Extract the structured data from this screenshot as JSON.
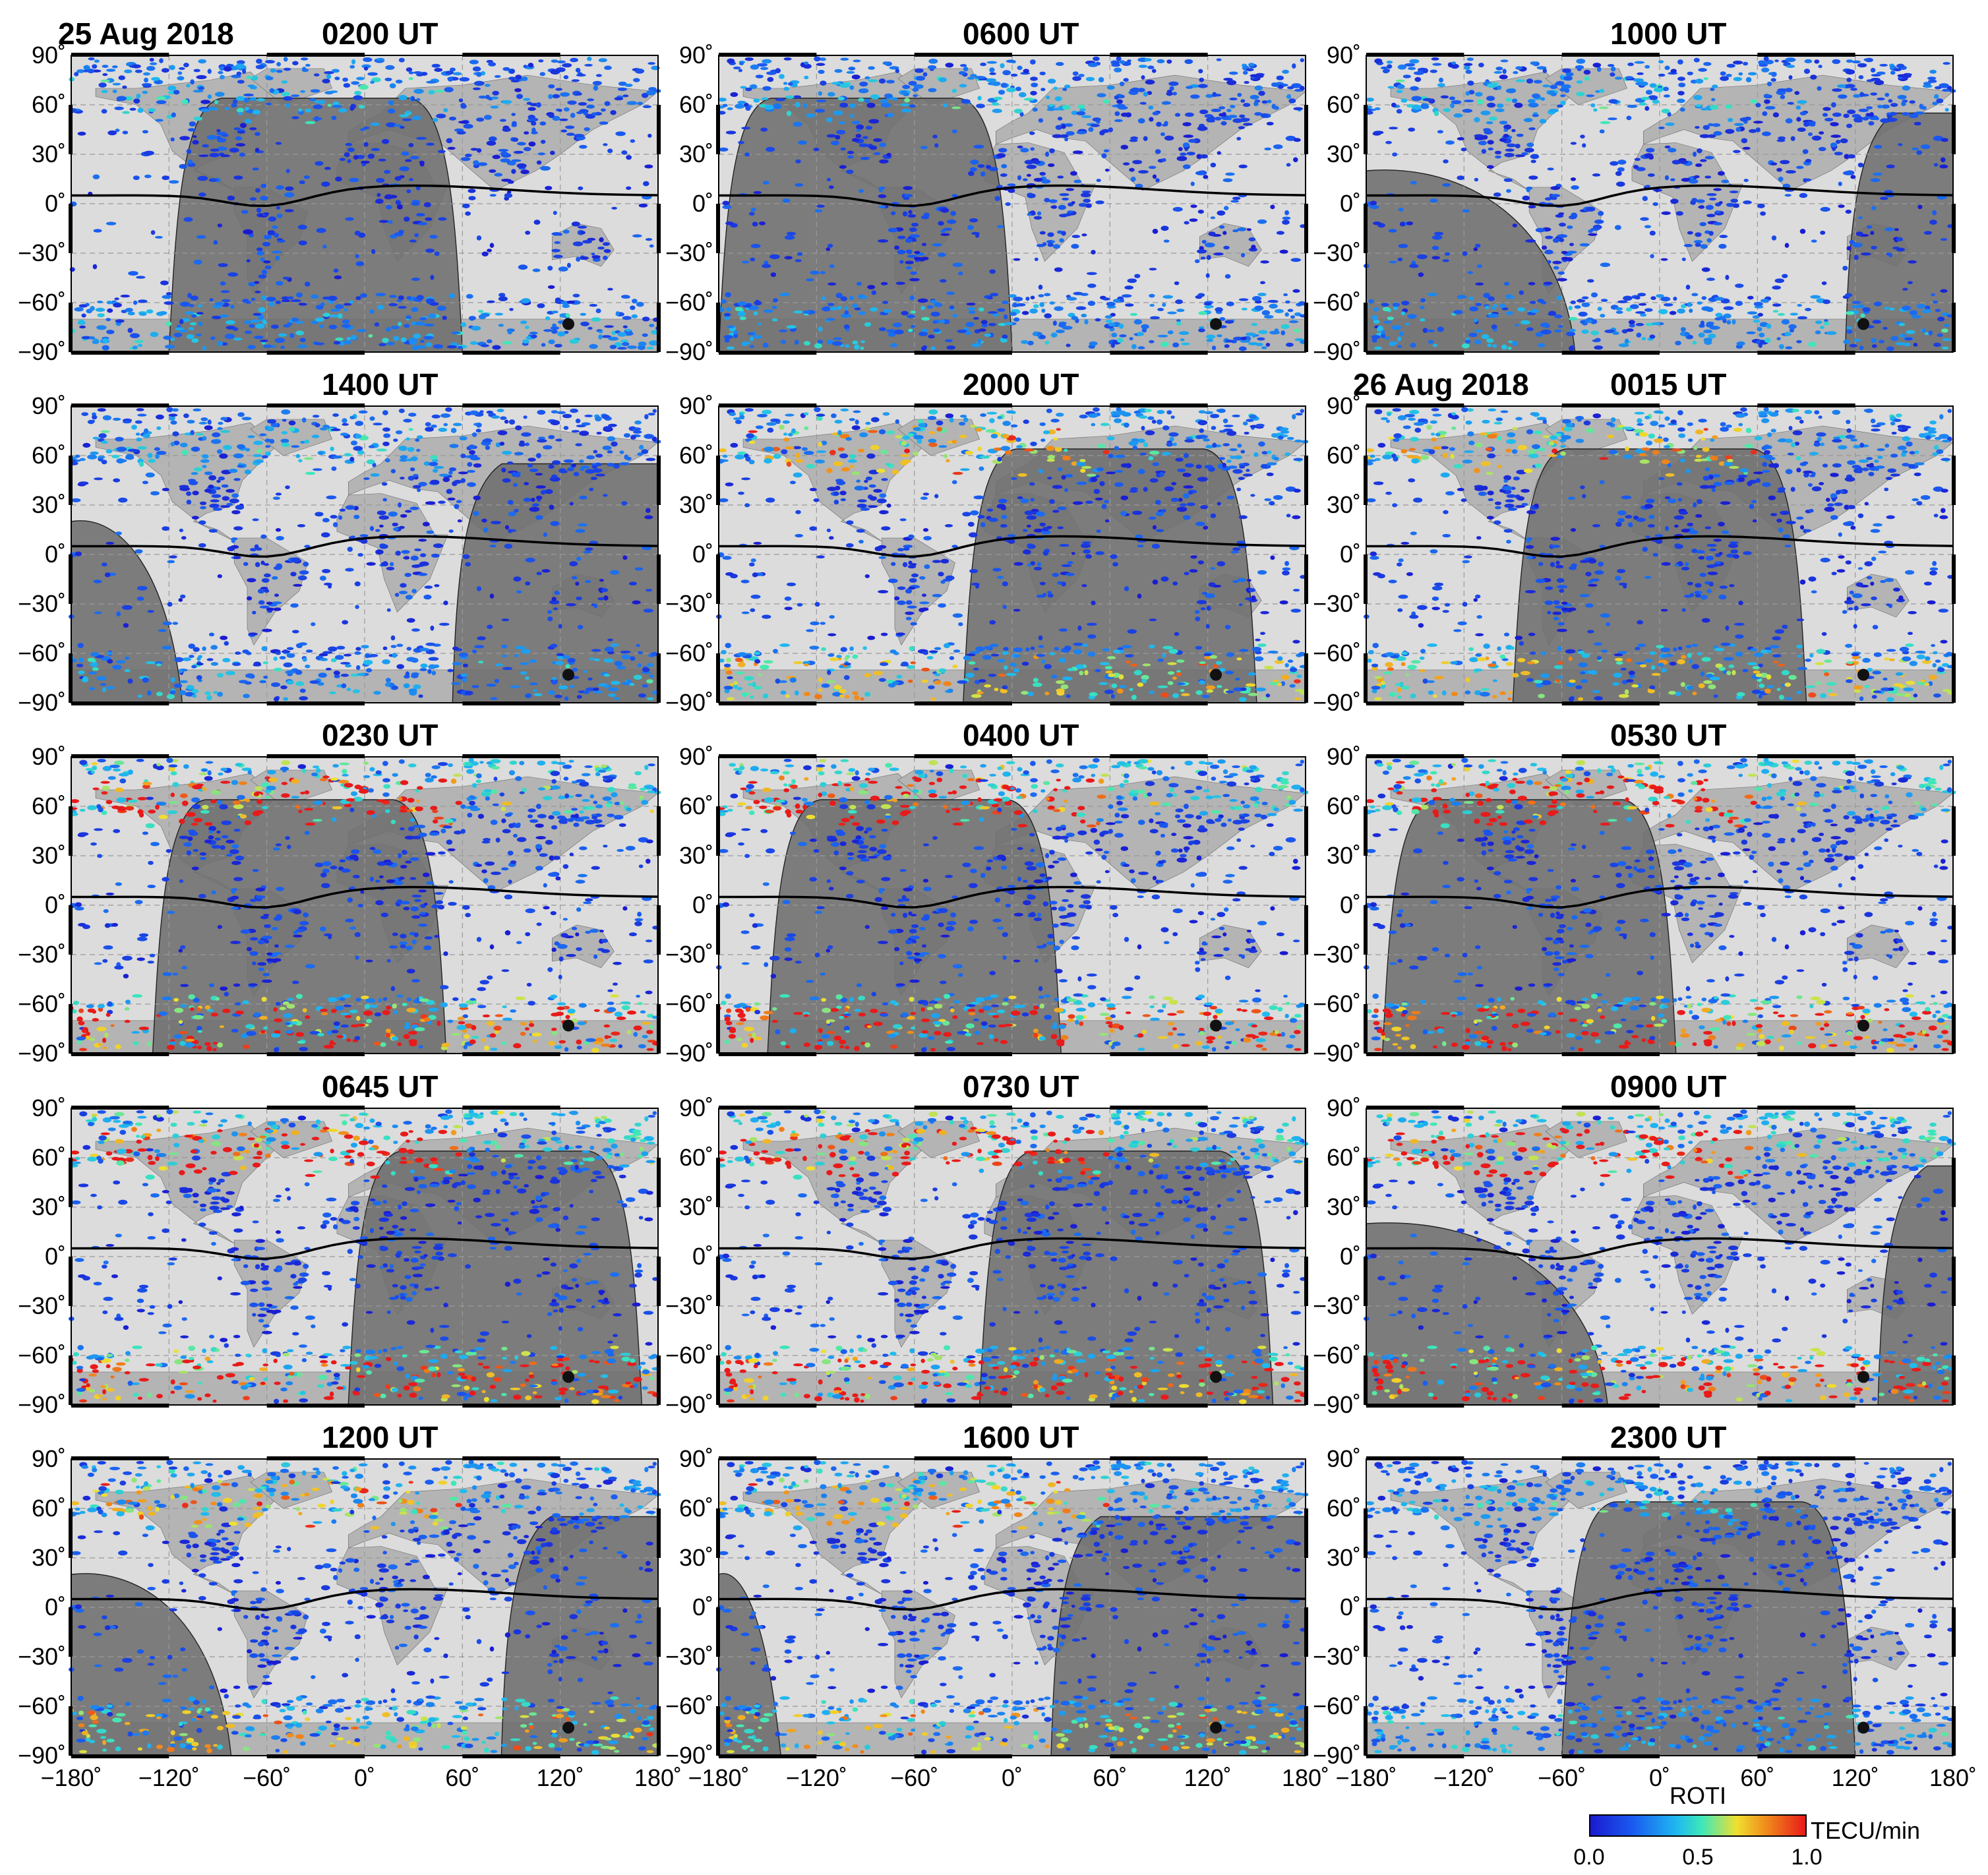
{
  "figure": {
    "date_labels": [
      "25 Aug 2018",
      "26 Aug 2018"
    ],
    "lat_ticks": [
      "90˚",
      "60˚",
      "30˚",
      "0˚",
      "−30˚",
      "−60˚",
      "−90˚"
    ],
    "lon_ticks": [
      "−180˚",
      "−120˚",
      "−60˚",
      "0˚",
      "60˚",
      "120˚",
      "180˚"
    ],
    "panels": [
      {
        "title": "0200 UT",
        "date": "25 Aug 2018",
        "terminator_left_lon": -120,
        "terminator_right_lon": 60,
        "night_side": "center",
        "activity": "low"
      },
      {
        "title": "0600 UT",
        "date": "",
        "terminator_left_lon": -180,
        "terminator_right_lon": 0,
        "night_side": "center",
        "activity": "low"
      },
      {
        "title": "1000 UT",
        "date": "",
        "terminator_left_lon": -60,
        "terminator_right_lon": 120,
        "night_side": "edges",
        "activity": "low"
      },
      {
        "title": "1400 UT",
        "date": "",
        "terminator_left_lon": -120,
        "terminator_right_lon": 60,
        "night_side": "edges",
        "activity": "low"
      },
      {
        "title": "2000 UT",
        "date": "",
        "terminator_left_lon": -30,
        "terminator_right_lon": 150,
        "night_side": "center",
        "activity": "moderate"
      },
      {
        "title": "0015 UT",
        "date": "26 Aug 2018",
        "terminator_left_lon": -90,
        "terminator_right_lon": 90,
        "night_side": "center",
        "activity": "moderate"
      },
      {
        "title": "0230 UT",
        "date": "",
        "terminator_left_lon": -130,
        "terminator_right_lon": 50,
        "night_side": "center",
        "activity": "high"
      },
      {
        "title": "0400 UT",
        "date": "",
        "terminator_left_lon": -150,
        "terminator_right_lon": 30,
        "night_side": "center",
        "activity": "high"
      },
      {
        "title": "0530 UT",
        "date": "",
        "terminator_left_lon": -170,
        "terminator_right_lon": 10,
        "night_side": "center",
        "activity": "high"
      },
      {
        "title": "0645 UT",
        "date": "",
        "terminator_left_lon": 170,
        "terminator_right_lon": -10,
        "night_side": "center",
        "activity": "high"
      },
      {
        "title": "0730 UT",
        "date": "",
        "terminator_left_lon": 160,
        "terminator_right_lon": -20,
        "night_side": "center",
        "activity": "high"
      },
      {
        "title": "0900 UT",
        "date": "",
        "terminator_left_lon": -40,
        "terminator_right_lon": 140,
        "night_side": "edges",
        "activity": "high"
      },
      {
        "title": "1200 UT",
        "date": "",
        "terminator_left_lon": -90,
        "terminator_right_lon": 90,
        "night_side": "edges",
        "activity": "moderate"
      },
      {
        "title": "1600 UT",
        "date": "",
        "terminator_left_lon": -150,
        "terminator_right_lon": 30,
        "night_side": "edges",
        "activity": "moderate"
      },
      {
        "title": "2300 UT",
        "date": "",
        "terminator_left_lon": -60,
        "terminator_right_lon": 120,
        "night_side": "center",
        "activity": "low"
      }
    ],
    "colorbar": {
      "title": "ROTI",
      "unit": "TECU/min",
      "ticks": [
        "0.0",
        "0.5",
        "1.0"
      ],
      "range": [
        0.0,
        1.0
      ]
    },
    "colors": {
      "day_ocean": "#dcdcdc",
      "night": "#6e6e6e",
      "land_day": "#b4b4b4",
      "roti_low": "#1a22d6",
      "roti_mid": "#1fd6e0",
      "roti_high": "#ee1b1b"
    }
  }
}
